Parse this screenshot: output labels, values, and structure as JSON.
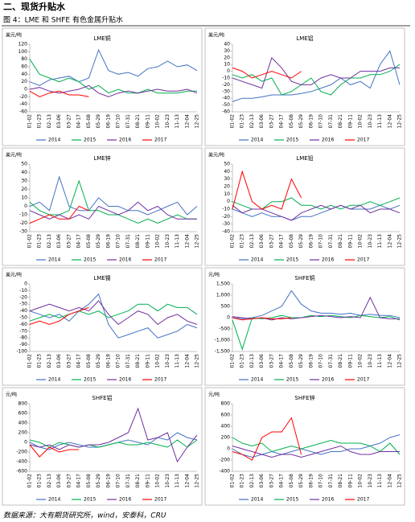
{
  "header": {
    "section": "二、现货升贴水",
    "figure": "图 4：LME 和 SHFE 有色金属升贴水"
  },
  "chart_data": [
    {
      "type": "line",
      "title": "LME铜",
      "unit": "美元/吨",
      "categories": [
        "01-02",
        "01-23",
        "02-13",
        "03-06",
        "03-27",
        "04-17",
        "05-08",
        "05-29",
        "06-19",
        "07-10",
        "07-31",
        "08-21",
        "09-11",
        "10-02",
        "10-23",
        "11-13",
        "12-04",
        "12-25"
      ],
      "ylim": [
        -60,
        120
      ],
      "yticks": [
        -60,
        -40,
        -20,
        0,
        20,
        40,
        60,
        80,
        100,
        120
      ],
      "series": [
        {
          "name": "2014",
          "color": "#4472c4",
          "values": [
            20,
            10,
            25,
            30,
            35,
            20,
            30,
            105,
            50,
            40,
            45,
            35,
            55,
            60,
            75,
            60,
            65,
            50
          ]
        },
        {
          "name": "2015",
          "color": "#00b050",
          "values": [
            80,
            40,
            30,
            20,
            30,
            20,
            0,
            10,
            -10,
            0,
            -10,
            -10,
            0,
            -10,
            -10,
            -10,
            -5,
            -5
          ]
        },
        {
          "name": "2016",
          "color": "#7030a0",
          "values": [
            0,
            5,
            -5,
            -10,
            -5,
            0,
            10,
            -10,
            -20,
            -10,
            -5,
            -10,
            -5,
            0,
            -5,
            -5,
            0,
            -10
          ]
        },
        {
          "name": "2017",
          "color": "#ff0000",
          "values": [
            -5,
            -20,
            -10,
            -5,
            -15,
            -15,
            -20,
            null,
            null,
            null,
            null,
            null,
            null,
            null,
            null,
            null,
            null,
            null
          ]
        }
      ]
    },
    {
      "type": "line",
      "title": "LME铝",
      "unit": "美元/吨",
      "categories": [
        "01-02",
        "01-23",
        "02-13",
        "03-06",
        "03-27",
        "04-17",
        "05-08",
        "05-29",
        "06-19",
        "07-10",
        "07-31",
        "08-21",
        "09-11",
        "10-02",
        "10-23",
        "11-13",
        "12-04",
        "12-25"
      ],
      "ylim": [
        -60,
        40
      ],
      "yticks": [
        -60,
        -50,
        -40,
        -30,
        -20,
        -10,
        0,
        10,
        20,
        30,
        40
      ],
      "series": [
        {
          "name": "2014",
          "color": "#4472c4",
          "values": [
            -45,
            -40,
            -40,
            -38,
            -35,
            -35,
            -35,
            -33,
            -30,
            -25,
            -20,
            -10,
            -20,
            -15,
            -25,
            10,
            30,
            -20
          ]
        },
        {
          "name": "2015",
          "color": "#00b050",
          "values": [
            -5,
            -10,
            -5,
            -15,
            -10,
            -35,
            -30,
            -20,
            -10,
            -30,
            -35,
            -20,
            -10,
            -10,
            -5,
            -5,
            0,
            10
          ]
        },
        {
          "name": "2016",
          "color": "#7030a0",
          "values": [
            -10,
            -15,
            -20,
            -25,
            20,
            5,
            -15,
            -20,
            -20,
            -10,
            -5,
            -10,
            -10,
            0,
            0,
            0,
            5,
            5
          ]
        },
        {
          "name": "2017",
          "color": "#ff0000",
          "values": [
            5,
            0,
            -10,
            -5,
            0,
            -5,
            -10,
            0,
            null,
            null,
            null,
            null,
            null,
            null,
            null,
            null,
            null,
            null
          ]
        }
      ]
    },
    {
      "type": "line",
      "title": "LME锌",
      "unit": "美元/吨",
      "categories": [
        "01-02",
        "01-23",
        "02-13",
        "03-06",
        "03-27",
        "04-17",
        "05-08",
        "05-29",
        "06-19",
        "07-10",
        "07-31",
        "08-21",
        "09-11",
        "10-02",
        "10-23",
        "11-13",
        "12-04",
        "12-25"
      ],
      "ylim": [
        -30,
        50
      ],
      "yticks": [
        -30,
        -20,
        -10,
        0,
        10,
        20,
        30,
        40,
        50
      ],
      "series": [
        {
          "name": "2014",
          "color": "#4472c4",
          "values": [
            0,
            5,
            -5,
            35,
            0,
            -5,
            -5,
            10,
            0,
            0,
            -5,
            -5,
            -10,
            -5,
            0,
            5,
            -10,
            0
          ]
        },
        {
          "name": "2015",
          "color": "#00b050",
          "values": [
            5,
            -5,
            -10,
            -10,
            -5,
            30,
            -5,
            -5,
            -10,
            -10,
            -15,
            -20,
            -15,
            -20,
            -15,
            -10,
            -15,
            -15
          ]
        },
        {
          "name": "2016",
          "color": "#7030a0",
          "values": [
            -5,
            -10,
            -15,
            -10,
            -15,
            -10,
            -15,
            0,
            -5,
            -10,
            -5,
            5,
            -5,
            0,
            -10,
            -15,
            -15,
            -15
          ]
        },
        {
          "name": "2017",
          "color": "#ff0000",
          "values": [
            -20,
            -15,
            -10,
            -15,
            -15,
            0,
            -5,
            null,
            null,
            null,
            null,
            null,
            null,
            null,
            null,
            null,
            null,
            null
          ]
        }
      ]
    },
    {
      "type": "line",
      "title": "LME铅",
      "unit": "美元/吨",
      "categories": [
        "01-02",
        "01-23",
        "02-13",
        "03-06",
        "03-27",
        "04-17",
        "05-08",
        "05-29",
        "06-19",
        "07-10",
        "07-31",
        "08-21",
        "09-11",
        "10-02",
        "10-23",
        "11-13",
        "12-04",
        "12-25"
      ],
      "ylim": [
        -40,
        50
      ],
      "yticks": [
        -40,
        -30,
        -20,
        -10,
        0,
        10,
        20,
        30,
        40,
        50
      ],
      "series": [
        {
          "name": "2014",
          "color": "#4472c4",
          "values": [
            -10,
            -15,
            -20,
            -15,
            -20,
            -20,
            -25,
            -20,
            -20,
            -15,
            -10,
            -5,
            -10,
            -10,
            -10,
            -5,
            -10,
            -5
          ]
        },
        {
          "name": "2015",
          "color": "#00b050",
          "values": [
            0,
            -5,
            -10,
            -10,
            0,
            0,
            5,
            -5,
            -5,
            -10,
            -5,
            -10,
            -5,
            -5,
            0,
            -5,
            0,
            5
          ]
        },
        {
          "name": "2016",
          "color": "#7030a0",
          "values": [
            -5,
            -15,
            -10,
            -10,
            -15,
            -20,
            -25,
            -15,
            -10,
            -5,
            -10,
            -5,
            -10,
            -5,
            -15,
            -10,
            -10,
            -15
          ]
        },
        {
          "name": "2017",
          "color": "#ff0000",
          "values": [
            -10,
            40,
            0,
            -10,
            -5,
            -10,
            30,
            5,
            null,
            null,
            null,
            null,
            null,
            null,
            null,
            null,
            null,
            null
          ]
        }
      ]
    },
    {
      "type": "line",
      "title": "LME镍",
      "unit": "美元/吨",
      "categories": [
        "01-02",
        "01-23",
        "02-13",
        "03-06",
        "03-27",
        "04-17",
        "05-08",
        "05-29",
        "06-19",
        "07-10",
        "07-31",
        "08-21",
        "09-11",
        "10-02",
        "10-23",
        "11-13",
        "12-04",
        "12-25"
      ],
      "ylim": [
        -100,
        0
      ],
      "yticks": [
        -100,
        -90,
        -80,
        -70,
        -60,
        -50,
        -40,
        -30,
        -20,
        -10,
        0
      ],
      "series": [
        {
          "name": "2014",
          "color": "#4472c4",
          "values": [
            -40,
            -45,
            -50,
            -45,
            -55,
            -40,
            -30,
            -15,
            -60,
            -80,
            -75,
            -70,
            -65,
            -80,
            -75,
            -70,
            -60,
            -65
          ]
        },
        {
          "name": "2015",
          "color": "#00b050",
          "values": [
            -55,
            -50,
            -45,
            -50,
            -45,
            -40,
            -45,
            -40,
            -50,
            -45,
            -40,
            -30,
            -30,
            -40,
            -30,
            -35,
            -35,
            -45
          ]
        },
        {
          "name": "2016",
          "color": "#7030a0",
          "values": [
            -40,
            -35,
            -30,
            -35,
            -40,
            -35,
            -40,
            -25,
            -45,
            -60,
            -50,
            -40,
            -45,
            -60,
            -50,
            -45,
            -55,
            -60
          ]
        },
        {
          "name": "2017",
          "color": "#ff0000",
          "values": [
            -60,
            -55,
            -60,
            -55,
            -45,
            -40,
            -35,
            null,
            null,
            null,
            null,
            null,
            null,
            null,
            null,
            null,
            null,
            null
          ]
        }
      ]
    },
    {
      "type": "line",
      "title": "SHFE铜",
      "unit": "元/吨",
      "categories": [
        "01-02",
        "01-23",
        "02-13",
        "03-06",
        "03-27",
        "04-17",
        "05-08",
        "05-29",
        "06-19",
        "07-10",
        "07-31",
        "08-21",
        "09-11",
        "10-02",
        "10-23",
        "11-13",
        "12-04",
        "12-25"
      ],
      "ylim": [
        -1500,
        1500
      ],
      "yticks": [
        {
          "value": -1500,
          "label": "-1,500"
        },
        {
          "value": -1000,
          "label": "-1,000"
        },
        -500,
        0,
        500,
        {
          "value": 1000,
          "label": "1,000"
        },
        {
          "value": 1500,
          "label": "1,500"
        }
      ],
      "series": [
        {
          "name": "2014",
          "color": "#4472c4",
          "values": [
            0,
            -50,
            0,
            100,
            300,
            500,
            1200,
            600,
            300,
            200,
            200,
            150,
            200,
            100,
            150,
            100,
            100,
            0
          ]
        },
        {
          "name": "2015",
          "color": "#00b050",
          "values": [
            -100,
            -1400,
            0,
            -50,
            0,
            100,
            0,
            0,
            100,
            50,
            100,
            50,
            0,
            100,
            50,
            0,
            50,
            -100
          ]
        },
        {
          "name": "2016",
          "color": "#7030a0",
          "values": [
            50,
            0,
            -50,
            0,
            -100,
            0,
            -50,
            0,
            50,
            100,
            50,
            0,
            50,
            0,
            900,
            0,
            -50,
            -50
          ]
        },
        {
          "name": "2017",
          "color": "#ff0000",
          "values": [
            0,
            -100,
            -50,
            0,
            -50,
            -50,
            0,
            null,
            null,
            null,
            null,
            null,
            null,
            null,
            null,
            null,
            null,
            null
          ]
        }
      ]
    },
    {
      "type": "line",
      "title": "SHFE铝",
      "unit": "元/吨",
      "categories": [
        "01-02",
        "01-23",
        "02-13",
        "03-06",
        "03-27",
        "04-17",
        "05-08",
        "05-29",
        "06-19",
        "07-10",
        "07-31",
        "08-21",
        "09-11",
        "10-02",
        "10-23",
        "11-13",
        "12-04",
        "12-25"
      ],
      "ylim": [
        -600,
        800
      ],
      "yticks": [
        -600,
        -400,
        -200,
        0,
        200,
        400,
        600,
        800
      ],
      "series": [
        {
          "name": "2014",
          "color": "#4472c4",
          "values": [
            0,
            -100,
            -150,
            -50,
            0,
            -50,
            -100,
            -100,
            -50,
            0,
            50,
            0,
            -50,
            100,
            50,
            200,
            100,
            50
          ]
        },
        {
          "name": "2015",
          "color": "#00b050",
          "values": [
            50,
            0,
            -100,
            0,
            -50,
            -100,
            -50,
            -100,
            -50,
            0,
            -50,
            -50,
            0,
            -50,
            -100,
            50,
            -100,
            50
          ]
        },
        {
          "name": "2016",
          "color": "#7030a0",
          "values": [
            -50,
            -100,
            -50,
            -150,
            -50,
            -100,
            -50,
            -50,
            0,
            100,
            200,
            700,
            50,
            100,
            200,
            -400,
            -100,
            150
          ]
        },
        {
          "name": "2017",
          "color": "#ff0000",
          "values": [
            -50,
            -300,
            -100,
            -200,
            -150,
            -150,
            null,
            null,
            null,
            null,
            null,
            null,
            null,
            null,
            null,
            null,
            null,
            null
          ]
        }
      ]
    },
    {
      "type": "line",
      "title": "SHFE锌",
      "unit": "元/吨",
      "categories": [
        "01-02",
        "01-23",
        "02-13",
        "03-06",
        "03-27",
        "04-17",
        "05-08",
        "05-29",
        "06-19",
        "07-10",
        "07-31",
        "08-21",
        "09-11",
        "10-02",
        "10-23",
        "11-13",
        "12-04",
        "12-25"
      ],
      "ylim": [
        -400,
        800
      ],
      "yticks": [
        -400,
        -200,
        0,
        200,
        400,
        600,
        800
      ],
      "series": [
        {
          "name": "2014",
          "color": "#4472c4",
          "values": [
            0,
            -100,
            -150,
            -100,
            -50,
            -100,
            -50,
            0,
            -50,
            -100,
            -50,
            -50,
            0,
            0,
            50,
            100,
            200,
            250
          ]
        },
        {
          "name": "2015",
          "color": "#00b050",
          "values": [
            200,
            100,
            50,
            100,
            -50,
            0,
            50,
            0,
            50,
            100,
            150,
            100,
            100,
            100,
            50,
            -50,
            100,
            -100
          ]
        },
        {
          "name": "2016",
          "color": "#7030a0",
          "values": [
            50,
            0,
            -50,
            -100,
            -150,
            -100,
            -100,
            -150,
            -100,
            -50,
            0,
            50,
            -50,
            -100,
            -100,
            -50,
            -50,
            -50
          ]
        },
        {
          "name": "2017",
          "color": "#ff0000",
          "values": [
            -50,
            -100,
            -200,
            200,
            300,
            300,
            550,
            -100,
            null,
            null,
            null,
            null,
            null,
            null,
            null,
            null,
            null,
            null
          ]
        }
      ]
    }
  ],
  "footer": {
    "source": "数据来源：大有期货研究所，wind，安泰科，CRU"
  }
}
